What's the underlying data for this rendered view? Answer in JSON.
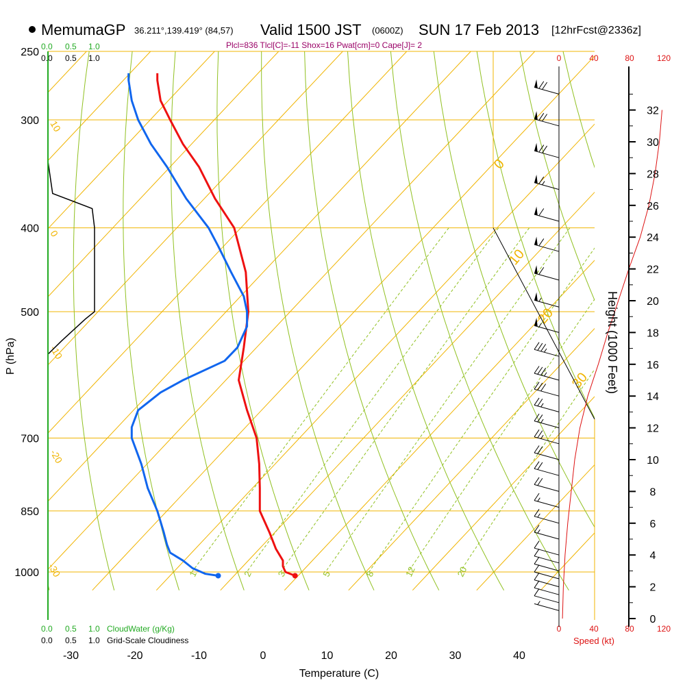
{
  "header": {
    "model": "MemumaGP",
    "location": "36.211°,139.419° (84,57)",
    "valid": "Valid 1500 JST",
    "zulu": "(0600Z)",
    "date": "SUN 17 Feb 2013",
    "forecast": "[12hrFcst@2336z]",
    "indices": "Plcl=836 Tlcl[C]=-11 Shox=16 Pwat[cm]=0 Cape[J]= 2"
  },
  "colors": {
    "temperature": "#ee1111",
    "dewpoint": "#1166ee",
    "isotherm": "#f0b400",
    "dry_adiabat": "#90c020",
    "mixing_ratio": "#90c020",
    "cloud_water": "#22aa22",
    "wind_speed": "#dd1111"
  },
  "top_scale": {
    "green_labels": [
      "0.0",
      "0.5",
      "1.0"
    ],
    "black_labels": [
      "0.0",
      "0.5",
      "1.0"
    ]
  },
  "bottom_scale": {
    "green_labels": [
      "0.0",
      "0.5",
      "1.0"
    ],
    "green_caption": "CloudWater (g/Kg)",
    "black_labels": [
      "0.0",
      "0.5",
      "1.0"
    ],
    "black_caption": "Grid-Scale Cloudiness"
  },
  "speed_scale": {
    "labels": [
      "0",
      "40",
      "80",
      "120"
    ],
    "caption": "Speed (kt)"
  },
  "chart_data": {
    "type": "line",
    "xlabel": "Temperature (C)",
    "ylabel": "P (hPa)",
    "y2label": "Height (1000 Feet)",
    "x_ticks": [
      -30,
      -20,
      -10,
      0,
      10,
      20,
      30,
      40
    ],
    "p_ticks": [
      250,
      300,
      400,
      500,
      700,
      850,
      1000
    ],
    "height_ticks": [
      0,
      2,
      4,
      6,
      8,
      10,
      12,
      14,
      16,
      18,
      20,
      22,
      24,
      26,
      28,
      30,
      32
    ],
    "adiabat_labels": [
      "10",
      "0",
      "-10",
      "-20",
      "-30",
      "0",
      "10",
      "20",
      "30"
    ],
    "mixing_ratio_labels": [
      "1",
      "2",
      "3",
      "5",
      "8",
      "12",
      "20"
    ],
    "series": [
      {
        "name": "Temperature",
        "pressure": [
          1010,
          1000,
          985,
          970,
          940,
          900,
          850,
          800,
          750,
          700,
          650,
          600,
          550,
          500,
          450,
          400,
          370,
          340,
          320,
          300,
          285,
          270,
          265
        ],
        "temp": [
          5,
          3.5,
          3.1,
          3.1,
          2,
          1,
          -0.5,
          -0.5,
          -0.6,
          -1,
          -2.5,
          -3.8,
          -3,
          -2.3,
          -2.7,
          -4.5,
          -7.5,
          -10,
          -12.5,
          -14.5,
          -16,
          -16.5,
          -16.5
        ]
      },
      {
        "name": "Dewpoint",
        "pressure": [
          1010,
          1005,
          990,
          970,
          950,
          930,
          900,
          850,
          800,
          750,
          700,
          680,
          650,
          620,
          600,
          570,
          550,
          520,
          500,
          480,
          450,
          420,
          400,
          370,
          340,
          320,
          300,
          285,
          270,
          265
        ],
        "temp": [
          -7,
          -9,
          -11,
          -12.5,
          -14.5,
          -15,
          -15.5,
          -16.5,
          -18,
          -19,
          -20.5,
          -20.5,
          -19.5,
          -16,
          -12.5,
          -6,
          -4,
          -2.5,
          -2.5,
          -3,
          -5,
          -7,
          -8.5,
          -12,
          -15,
          -17.5,
          -19.5,
          -20.5,
          -21,
          -21
        ]
      }
    ],
    "surface_points": [
      {
        "name": "Temperature",
        "pressure": 1010,
        "temp": 5
      },
      {
        "name": "Dewpoint",
        "pressure": 1010,
        "temp": -7
      }
    ],
    "wind_speed_profile": {
      "height_kft": [
        0,
        2,
        4,
        6,
        8,
        10,
        12,
        14,
        16,
        18,
        20,
        22,
        24,
        26,
        28,
        30,
        32
      ],
      "speed_kt": [
        4,
        5,
        7,
        10,
        14,
        18,
        24,
        33,
        45,
        56,
        68,
        80,
        93,
        103,
        110,
        115,
        118
      ]
    },
    "wind_barbs": {
      "height_kft": [
        0.5,
        1,
        1.5,
        2,
        2.5,
        3,
        3.5,
        4,
        5,
        6,
        7,
        8,
        9,
        10,
        11,
        12,
        13,
        14,
        15,
        16.5,
        18,
        19.6,
        21.3,
        23.1,
        25,
        27,
        29,
        31,
        33
      ],
      "speed_kt": [
        5,
        10,
        10,
        10,
        10,
        10,
        10,
        10,
        15,
        15,
        15,
        20,
        20,
        20,
        25,
        25,
        25,
        30,
        35,
        35,
        55,
        55,
        60,
        60,
        60,
        65,
        70,
        70,
        70
      ]
    },
    "cloud_fraction_profile": {
      "pressure": [
        335,
        365,
        380,
        400,
        500,
        510,
        540,
        560
      ],
      "value": [
        0.0,
        0.1,
        0.95,
        1.0,
        1.0,
        0.8,
        0.3,
        0.0
      ]
    }
  }
}
